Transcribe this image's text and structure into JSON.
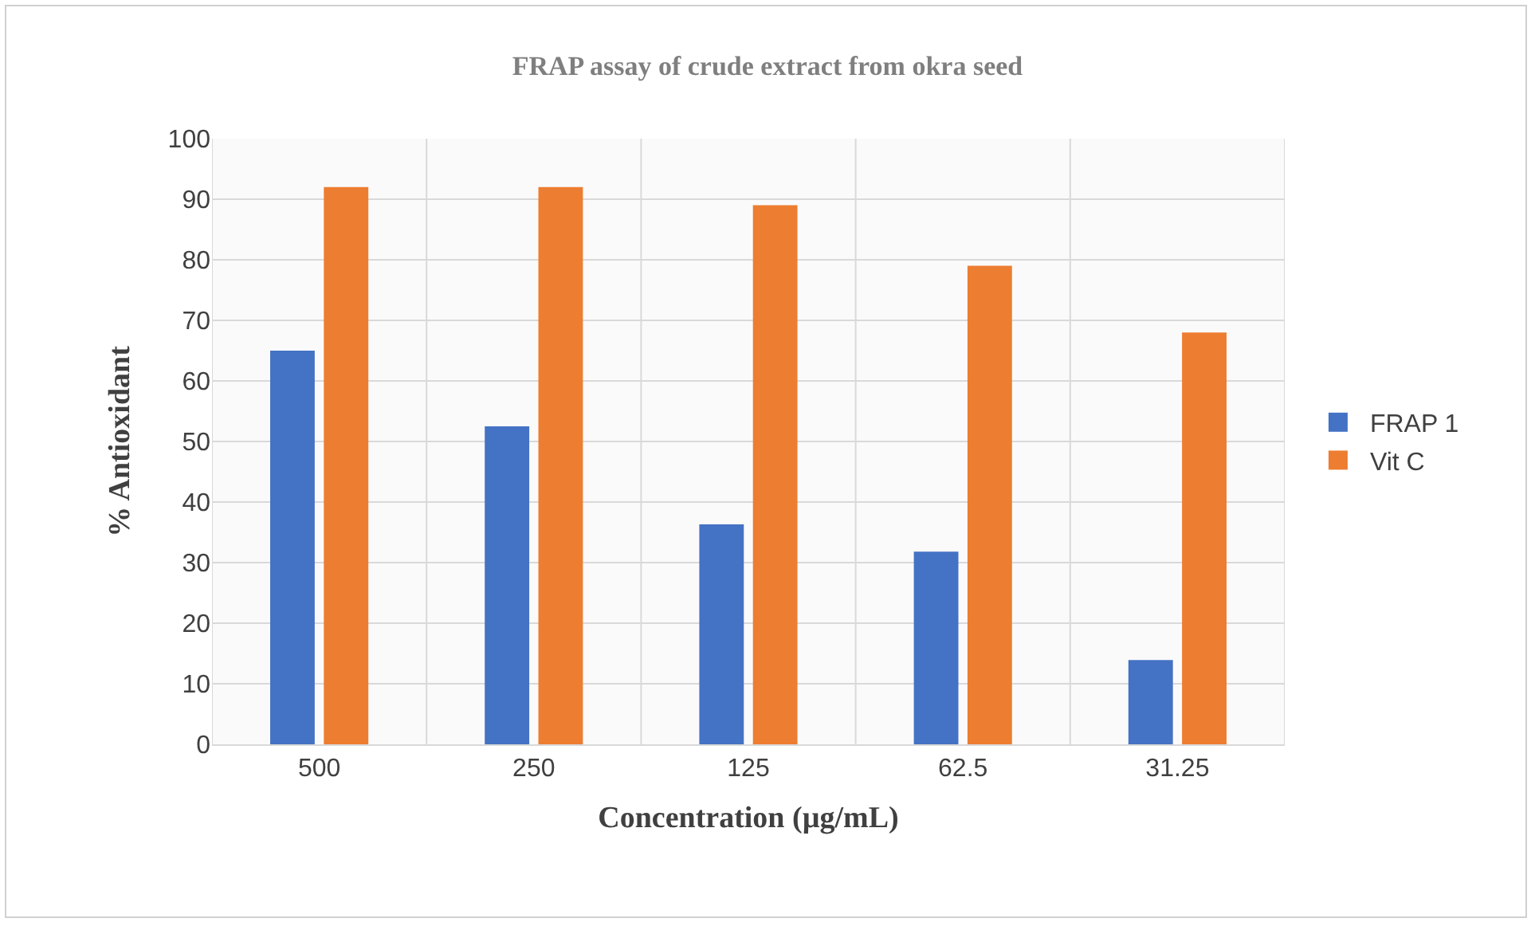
{
  "chart_data": {
    "type": "bar",
    "title": "FRAP assay of crude extract from okra seed",
    "xlabel": "Concentration (µg/mL)",
    "ylabel": "% Antioxidant",
    "categories": [
      "500",
      "250",
      "125",
      "62.5",
      "31.25"
    ],
    "series": [
      {
        "name": "FRAP 1",
        "color": "#4472c4",
        "values": [
          65,
          52.5,
          36.3,
          31.8,
          13.9
        ]
      },
      {
        "name": "Vit C",
        "color": "#ed7d31",
        "values": [
          92,
          92,
          89,
          79,
          68
        ]
      }
    ],
    "ylim": [
      0,
      100
    ],
    "yticks": [
      0,
      10,
      20,
      30,
      40,
      50,
      60,
      70,
      80,
      90,
      100
    ],
    "grid": true,
    "legend": "right"
  }
}
